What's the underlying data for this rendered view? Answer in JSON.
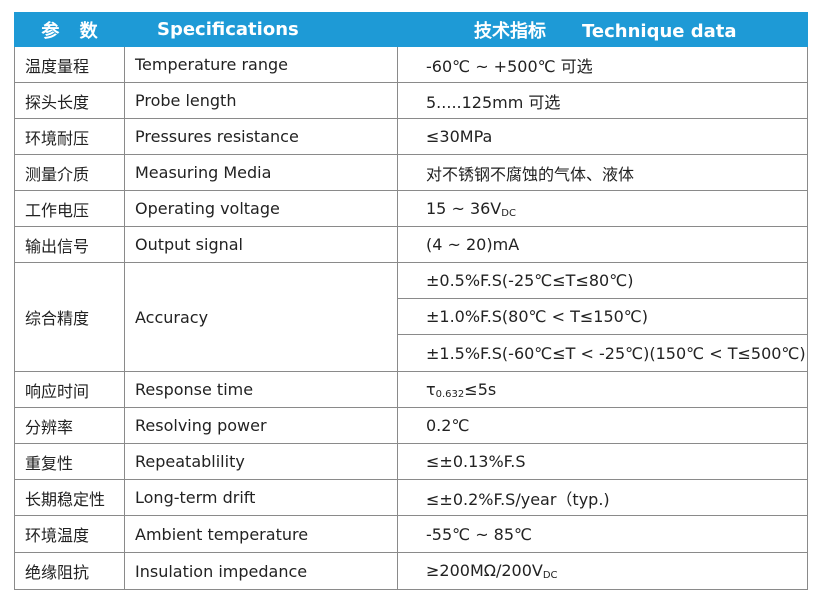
{
  "header": {
    "cells": [
      "参 数",
      "Specifications"
    ],
    "tech_cn": "技术指标",
    "tech_en": "Technique data"
  },
  "rows": [
    {
      "cn": "温度量程",
      "en": "Temperature range",
      "value": "-60℃ ~ +500℃ 可选"
    },
    {
      "cn": "探头长度",
      "en": "Probe length",
      "value": "5.....125mm 可选"
    },
    {
      "cn": "环境耐压",
      "en": "Pressures resistance",
      "value": "≤30MPa"
    },
    {
      "cn": "测量介质",
      "en": "Measuring Media",
      "value": "对不锈钢不腐蚀的气体、液体"
    },
    {
      "cn": "工作电压",
      "en": "Operating voltage",
      "value": [
        {
          "text": "15 ~ 36V"
        },
        {
          "text": "DC",
          "sub": true
        }
      ]
    },
    {
      "cn": "输出信号",
      "en": "Output signal",
      "value": "(4 ~ 20)mA"
    },
    {
      "cn": "综合精度",
      "en": "Accuracy",
      "values": [
        "±0.5%F.S(-25℃≤T≤80℃)",
        "±1.0%F.S(80℃ < T≤150℃)",
        "±1.5%F.S(-60℃≤T < -25℃)(150℃ < T≤500℃)"
      ]
    },
    {
      "cn": "响应时间",
      "en": "Response time",
      "value": [
        {
          "text": "τ"
        },
        {
          "text": "0.632",
          "sub": true
        },
        {
          "text": "≤5s"
        }
      ]
    },
    {
      "cn": "分辨率",
      "en": "Resolving power",
      "value": "0.2℃"
    },
    {
      "cn": "重复性",
      "en": "Repeatablility",
      "value": "≤±0.13%F.S"
    },
    {
      "cn": "长期稳定性",
      "en": "Long-term drift",
      "value": "≤±0.2%F.S/year（typ.)"
    },
    {
      "cn": "环境温度",
      "en": "Ambient temperature",
      "value": "-55℃ ~ 85℃"
    },
    {
      "cn": "绝缘阻抗",
      "en": "Insulation impedance",
      "value": [
        {
          "text": "≥200MΩ/200V"
        },
        {
          "text": "DC",
          "sub": true
        }
      ]
    }
  ]
}
